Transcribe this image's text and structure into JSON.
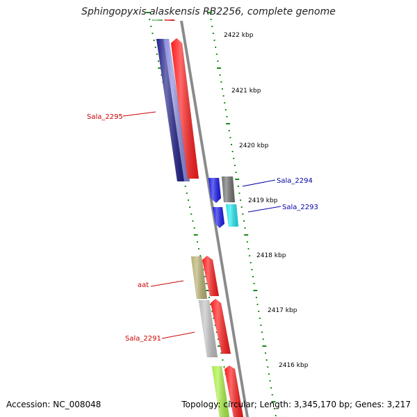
{
  "title": "Sphingopyxis alaskensis RB2256, complete genome",
  "accession": "Accession: NC_008048",
  "summary": "Topology: circular; Length: 3,345,170 bp; Genes: 3,217",
  "colors": {
    "backbone": "#8a8a8a",
    "ticks": "#1a8a1a",
    "label_reverse": "#cc0000",
    "label_forward": "#0000aa"
  },
  "ticks": [
    {
      "label": "2422 kbp"
    },
    {
      "label": "2421 kbp"
    },
    {
      "label": "2420 kbp"
    },
    {
      "label": "2419 kbp"
    },
    {
      "label": "2418 kbp"
    },
    {
      "label": "2417 kbp"
    },
    {
      "label": "2416 kbp"
    }
  ],
  "gene_labels": [
    {
      "text": "Sala_2295",
      "strand": "reverse"
    },
    {
      "text": "Sala_2294",
      "strand": "forward"
    },
    {
      "text": "Sala_2293",
      "strand": "forward"
    },
    {
      "text": "aat",
      "strand": "reverse"
    },
    {
      "text": "Sala_2291",
      "strand": "reverse"
    }
  ],
  "features": [
    {
      "name": "feature-top-green",
      "color": "#7fd37f",
      "icon": "bar"
    },
    {
      "name": "feature-top-red",
      "color": "#ff2020",
      "icon": "bar"
    },
    {
      "name": "gene-sala-2295-navy",
      "color": "#20208a",
      "icon": "bar"
    },
    {
      "name": "gene-sala-2295-lavender",
      "color": "#8888dd",
      "icon": "bar"
    },
    {
      "name": "gene-sala-2295-red",
      "color": "#ff1a1a",
      "icon": "arrow-up"
    },
    {
      "name": "gene-sala-2294-blue",
      "color": "#1a1aee",
      "icon": "arrow-down"
    },
    {
      "name": "gene-sala-2294-gray",
      "color": "#707070",
      "icon": "bar"
    },
    {
      "name": "gene-sala-2293-blue",
      "color": "#1a1aee",
      "icon": "arrow-down"
    },
    {
      "name": "gene-sala-2293-cyan",
      "color": "#20e8f0",
      "icon": "bar"
    },
    {
      "name": "gene-aat-olive",
      "color": "#b8b070",
      "icon": "bar"
    },
    {
      "name": "gene-aat-red",
      "color": "#ff1a1a",
      "icon": "arrow-up"
    },
    {
      "name": "gene-sala-2291-silver",
      "color": "#c0c0c0",
      "icon": "bar"
    },
    {
      "name": "gene-sala-2291-red",
      "color": "#ff1a1a",
      "icon": "arrow-up"
    },
    {
      "name": "feature-bottom-lime",
      "color": "#a8f040",
      "icon": "bar"
    },
    {
      "name": "feature-bottom-red",
      "color": "#ff1a1a",
      "icon": "arrow-up"
    }
  ]
}
